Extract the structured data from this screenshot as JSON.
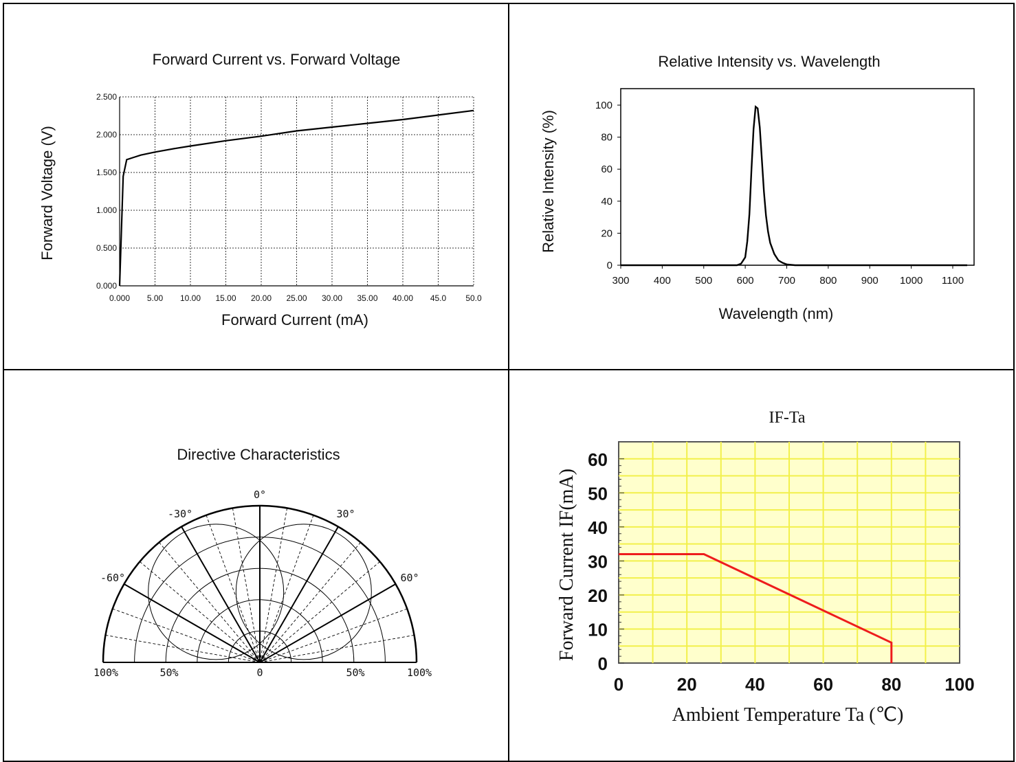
{
  "chart_data": [
    {
      "type": "line",
      "title": "Forward Current vs. Forward Voltage",
      "xlabel": "Forward Current (mA)",
      "ylabel": "Forward Voltage (V)",
      "xlim": [
        0,
        50
      ],
      "ylim": [
        0,
        2.5
      ],
      "x_ticks": [
        "0.000",
        "5.00",
        "10.00",
        "15.00",
        "20.00",
        "25.00",
        "30.00",
        "35.00",
        "40.00",
        "45.0",
        "50.0"
      ],
      "y_ticks": [
        "0.000",
        "0.500",
        "1.000",
        "1.500",
        "2.000",
        "2.500"
      ],
      "grid": true,
      "x": [
        0,
        0.5,
        1.0,
        2,
        3,
        5,
        8,
        10,
        15,
        20,
        25,
        30,
        35,
        40,
        45,
        50
      ],
      "y": [
        0,
        1.45,
        1.67,
        1.7,
        1.73,
        1.77,
        1.82,
        1.85,
        1.92,
        1.98,
        2.05,
        2.1,
        2.15,
        2.2,
        2.26,
        2.32
      ]
    },
    {
      "type": "line",
      "title": "Relative Intensity vs. Wavelength",
      "xlabel": "Wavelength (nm)",
      "ylabel": "Relative Intensity (%)",
      "xlim": [
        300,
        1140
      ],
      "ylim": [
        0,
        110
      ],
      "x_ticks": [
        "300",
        "400",
        "500",
        "600",
        "700",
        "800",
        "900",
        "1000",
        "1100"
      ],
      "y_ticks": [
        "0",
        "20",
        "40",
        "60",
        "80",
        "100"
      ],
      "grid": false,
      "x": [
        300,
        580,
        590,
        600,
        605,
        610,
        615,
        620,
        625,
        630,
        635,
        640,
        645,
        650,
        655,
        660,
        670,
        680,
        690,
        700,
        720,
        1140
      ],
      "y": [
        0,
        0,
        1,
        5,
        15,
        32,
        60,
        85,
        99,
        98,
        86,
        66,
        46,
        31,
        21,
        14,
        7,
        3,
        1.5,
        0.5,
        0,
        0
      ]
    },
    {
      "type": "polar",
      "title": "Directive Characteristics",
      "angle_labels": [
        "0°",
        "-30°",
        "30°",
        "-60°",
        "60°"
      ],
      "radial_labels": [
        "100%",
        "50%",
        "0",
        "50%",
        "100%"
      ]
    },
    {
      "type": "line",
      "title": "IF-Ta",
      "xlabel": "Ambient Temperature Ta (℃)",
      "ylabel": "Forward Current IF(mA)",
      "xlim": [
        0,
        100
      ],
      "ylim": [
        0,
        65
      ],
      "x_ticks": [
        "0",
        "20",
        "40",
        "60",
        "80",
        "100"
      ],
      "y_ticks": [
        "0",
        "10",
        "20",
        "30",
        "40",
        "50",
        "60"
      ],
      "grid": true,
      "x": [
        0,
        25,
        80,
        80
      ],
      "y": [
        32,
        32,
        6,
        0
      ],
      "line_color": "#ee1c1c",
      "background_color": "#ffffcc",
      "grid_color": "#f2f04a"
    }
  ]
}
